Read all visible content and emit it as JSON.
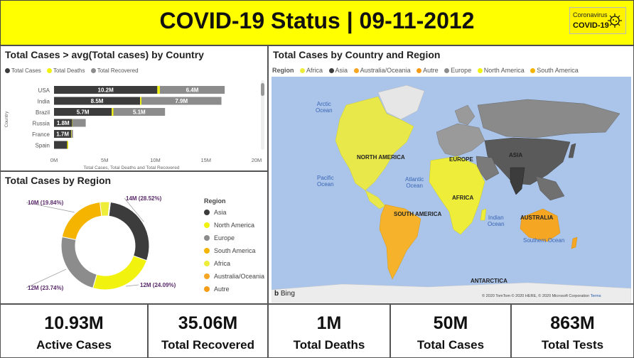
{
  "header": {
    "title": "COVID-19 Status | 09-11-2012",
    "logo_line1": "Coronavirus",
    "logo_line2": "COVID-19"
  },
  "bar_panel": {
    "title": "Total Cases > avg(Total cases) by Country",
    "legend": [
      "Total Cases",
      "Total Deaths",
      "Total Recovered"
    ],
    "yaxis_label": "Country",
    "xaxis_title": "Total Cases, Total Deaths and Total Recovered"
  },
  "donut_panel": {
    "title": "Total Cases by Region",
    "legend_title": "Region"
  },
  "map_panel": {
    "title": "Total Cases by Country and Region",
    "legend_title": "Region",
    "legend": [
      "Africa",
      "Asia",
      "Australia/Oceania",
      "Autre",
      "Europe",
      "North America",
      "South America"
    ],
    "labels": {
      "arctic": "Arctic\nOcean",
      "north_america": "NORTH AMERICA",
      "europe": "EUROPE",
      "asia": "ASIA",
      "atlantic": "Atlantic\nOcean",
      "pacific": "Pacific\nOcean",
      "africa": "AFRICA",
      "south_america": "SOUTH AMERICA",
      "indian": "Indian\nOcean",
      "australia": "AUSTRALIA",
      "southern": "Southern Ocean",
      "antarctica": "ANTARCTICA"
    },
    "bing": "Bing",
    "copyright": "© 2020 TomTom © 2020 HERE, © 2020 Microsoft Corporation",
    "terms": "Terms"
  },
  "kpis": [
    {
      "value": "10.93M",
      "label": "Active Cases"
    },
    {
      "value": "35.06M",
      "label": "Total Recovered"
    },
    {
      "value": "1M",
      "label": "Total Deaths"
    },
    {
      "value": "50M",
      "label": "Total Cases"
    },
    {
      "value": "863M",
      "label": "Total Tests"
    }
  ],
  "colors": {
    "total_cases": "#3c3c3c",
    "total_deaths": "#f2f20f",
    "total_recovered": "#8c8c8c",
    "asia": "#3c3c3c",
    "north_america": "#f2f20f",
    "europe": "#8c8c8c",
    "south_america": "#f5b400",
    "africa": "#eded3a",
    "australia": "#f5a623",
    "autre": "#f59c16",
    "ocean": "#aac4ea"
  },
  "chart_data": [
    {
      "type": "bar",
      "stacked": true,
      "orientation": "horizontal",
      "title": "Total Cases > avg(Total cases) by Country",
      "ylabel": "Country",
      "xlabel": "Total Cases, Total Deaths and Total Recovered",
      "categories": [
        "USA",
        "India",
        "Brazil",
        "Russia",
        "France",
        "Spain"
      ],
      "xlim": [
        0,
        20
      ],
      "xticks": [
        "0M",
        "5M",
        "10M",
        "15M",
        "20M"
      ],
      "series": [
        {
          "name": "Total Cases",
          "values": [
            10.2,
            8.5,
            5.7,
            1.8,
            1.7,
            1.3
          ],
          "labels": [
            "10.2M",
            "8.5M",
            "5.7M",
            "1.8M",
            "1.7M",
            ""
          ]
        },
        {
          "name": "Total Deaths",
          "values": [
            0.25,
            0.13,
            0.16,
            0.03,
            0.04,
            0.04
          ],
          "labels": [
            "",
            "",
            "",
            "",
            "",
            ""
          ]
        },
        {
          "name": "Total Recovered",
          "values": [
            6.4,
            7.9,
            5.1,
            1.3,
            0.13,
            0.0
          ],
          "labels": [
            "6.4M",
            "7.9M",
            "5.1M",
            "",
            "",
            ""
          ]
        }
      ],
      "legend_position": "top-left"
    },
    {
      "type": "pie",
      "donut": true,
      "title": "Total Cases by Region",
      "legend_title": "Region",
      "legend_position": "right",
      "categories": [
        "Asia",
        "North America",
        "Europe",
        "South America",
        "Africa",
        "Australia/Oceania",
        "Autre"
      ],
      "values": [
        28.52,
        24.09,
        23.74,
        19.84,
        3.5,
        0.25,
        0.06
      ],
      "data_labels": [
        "14M (28.52%)",
        "12M (24.09%)",
        "12M (23.74%)",
        "10M (19.84%)",
        "",
        "",
        ""
      ]
    }
  ]
}
